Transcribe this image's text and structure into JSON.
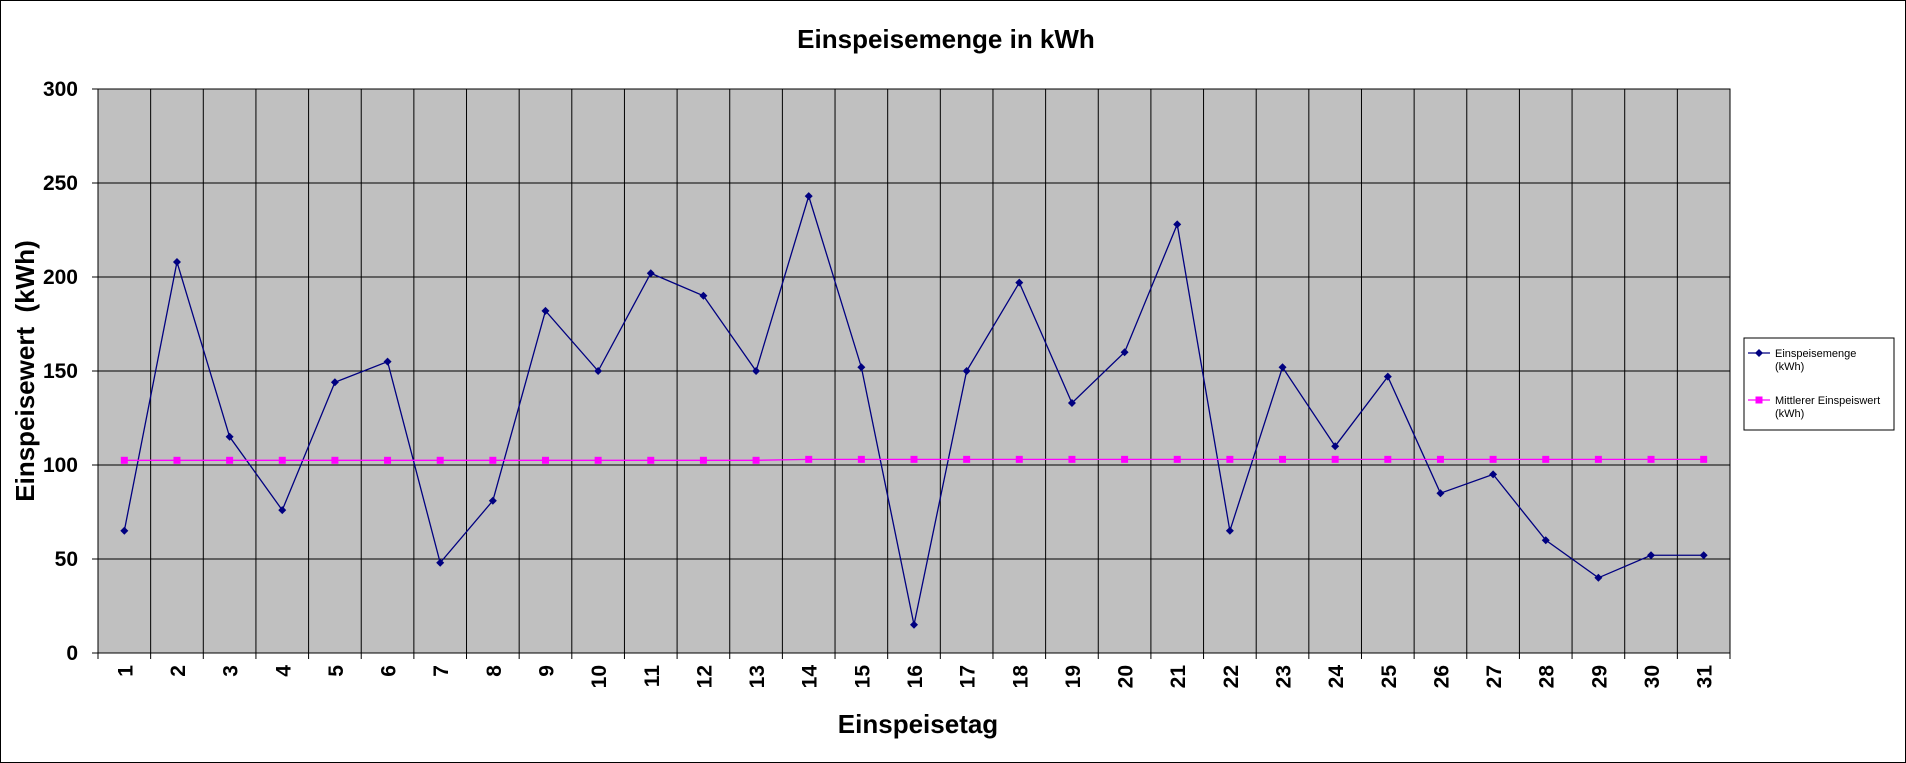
{
  "chart_data": {
    "type": "line",
    "title": "Einspeisemenge in kWh",
    "xlabel": "Einspeisetag",
    "ylabel": "Einspeisewert  (kWh)",
    "ylim": [
      0,
      300
    ],
    "yticks": [
      0,
      50,
      100,
      150,
      200,
      250,
      300
    ],
    "categories": [
      "1",
      "2",
      "3",
      "4",
      "5",
      "6",
      "7",
      "8",
      "9",
      "10",
      "11",
      "12",
      "13",
      "14",
      "15",
      "16",
      "17",
      "18",
      "19",
      "20",
      "21",
      "22",
      "23",
      "24",
      "25",
      "26",
      "27",
      "28",
      "29",
      "30",
      "31"
    ],
    "grid": true,
    "legend_position": "right",
    "series": [
      {
        "name_lines": [
          "Einspeisemenge",
          "(kWh)"
        ],
        "color": "#000080",
        "marker": "diamond",
        "values": [
          65,
          208,
          115,
          76,
          144,
          155,
          48,
          81,
          182,
          150,
          202,
          190,
          150,
          243,
          152,
          15,
          150,
          197,
          133,
          160,
          228,
          65,
          152,
          110,
          147,
          85,
          95,
          60,
          40,
          52,
          52
        ]
      },
      {
        "name_lines": [
          "Mittlerer Einspeiswert",
          "(kWh)"
        ],
        "color": "#ff00ff",
        "marker": "square",
        "values": [
          102.5,
          102.5,
          102.5,
          102.5,
          102.5,
          102.5,
          102.5,
          102.5,
          102.5,
          102.5,
          102.5,
          102.5,
          102.5,
          103,
          103,
          103,
          103,
          103,
          103,
          103,
          103,
          103,
          103,
          103,
          103,
          103,
          103,
          103,
          103,
          103,
          103
        ]
      }
    ]
  }
}
